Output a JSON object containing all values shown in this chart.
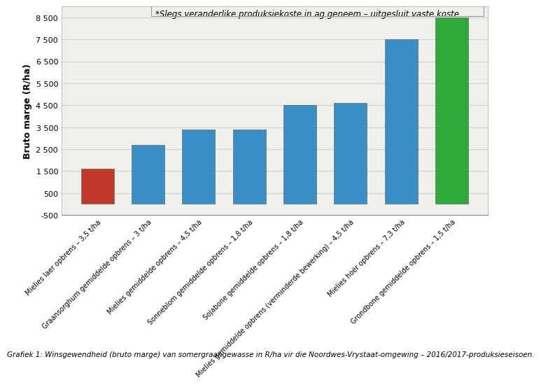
{
  "categories": [
    "Mielies laer opbrens – 3,5 t/ha",
    "Graansorghum gemiddelde opbrens – 3 t/ha",
    "Mielies gemiddelde opbrens – 4,5 t/ha",
    "Sonneblom gemiddelde opbrens – 1,8 t/ha",
    "Sojabone gemiddelde opbrens – 1,8 t/ha",
    "Mielies gemiddelde opbrens (verminderde bewerking) – 4,5 t/ha",
    "Mielies hoër opbrens – 7,3 t/ha",
    "Grondbone gemiddelde opbrens – 1,5 t/ha"
  ],
  "values": [
    1600,
    2700,
    3400,
    3400,
    4500,
    4600,
    7500,
    8500
  ],
  "bar_colors": [
    "#c0392b",
    "#3a8fc7",
    "#3a8fc7",
    "#3a8fc7",
    "#3a8fc7",
    "#3a8fc7",
    "#3a8fc7",
    "#2eaa3c"
  ],
  "ylabel": "Bruto marge (R/ha)",
  "ylim": [
    -500,
    9000
  ],
  "yticks": [
    -500,
    500,
    1500,
    2500,
    3500,
    4500,
    5500,
    6500,
    7500,
    8500
  ],
  "ytick_labels": [
    "-500",
    "500",
    "1 500",
    "2 500",
    "3 500",
    "4 500",
    "5 500",
    "6 500",
    "7 500",
    "8 500"
  ],
  "annotation": "*Slegs veranderlike produksiekoste in ag geneem – uitgesluit vaste koste",
  "caption": "Grafiek 1: Winsgewendheid (bruto marge) van somergraangewasse in R/ha vir die Noordwes-Vrystaat-omgewing – 2016/2017-produksieseisoen.",
  "grid_color": "#d0d0d0",
  "bar_edge_color": "#666666",
  "background_color": "#ffffff",
  "plot_bg_color": "#f0f0eb",
  "annotation_fontsize": 8.5,
  "caption_fontsize": 7.5,
  "ylabel_fontsize": 9,
  "ytick_fontsize": 8,
  "xtick_fontsize": 7
}
